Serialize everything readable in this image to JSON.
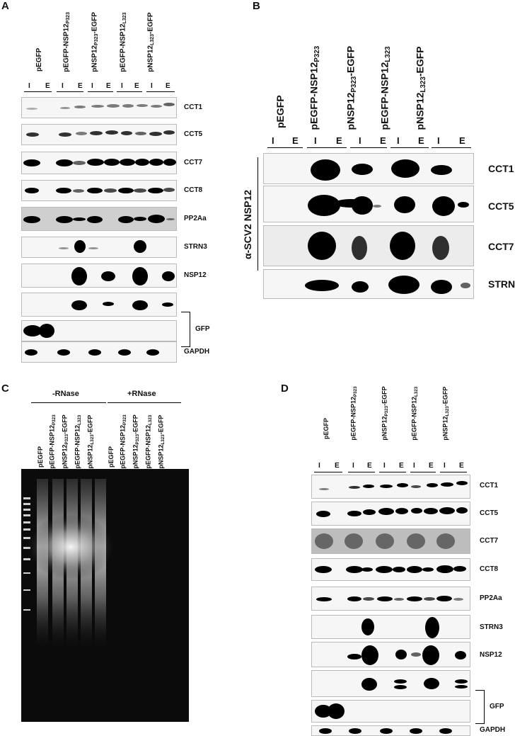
{
  "panels": {
    "A": {
      "label": "A",
      "lanes": [
        "pEGFP",
        "pEGFP-NSP12_P323",
        "pNSP12_P323-EGFP",
        "pEGFP-NSP12_L323",
        "pNSP12_L323-EGFP"
      ],
      "ie": [
        "I",
        "E"
      ],
      "blots": [
        "CCT1",
        "CCT5",
        "CCT7",
        "CCT8",
        "PP2Aa",
        "STRN3",
        "NSP12",
        "GFP",
        "GAPDH"
      ]
    },
    "B": {
      "label": "B",
      "lanes": [
        "pEGFP",
        "pEGFP-NSP12_P323",
        "pNSP12_P323-EGFP",
        "pEGFP-NSP12_L323",
        "pNSP12_L323-EGFP"
      ],
      "ie": [
        "I",
        "E"
      ],
      "ip_label": "α-SCV2 NSP12",
      "blots": [
        "CCT1",
        "CCT5",
        "CCT7",
        "STRN3"
      ]
    },
    "C": {
      "label": "C",
      "group_minus": "-RNase",
      "group_plus": "+RNase",
      "lanes": [
        "pEGFP",
        "pEGFP-NSP12_P323",
        "pNSP12_P323-EGFP",
        "pEGFP-NSP12_L323",
        "pNSP12_L323-EGFP",
        "pEGFP",
        "pEGFP-NSP12_P323",
        "pNSP12_P323-EGFP",
        "pEGFP-NSP12_L323",
        "pNSP12_L323-EGFP"
      ]
    },
    "D": {
      "label": "D",
      "lanes": [
        "pEGFP",
        "pEGFP-NSP12_P323",
        "pNSP12_P323-EGFP",
        "pEGFP-NSP12_L323",
        "pNSP12_L323-EGFP"
      ],
      "ie": [
        "I",
        "E"
      ],
      "blots": [
        "CCT1",
        "CCT5",
        "CCT7",
        "CCT8",
        "PP2Aa",
        "STRN3",
        "NSP12",
        "GFP",
        "GAPDH"
      ]
    }
  }
}
